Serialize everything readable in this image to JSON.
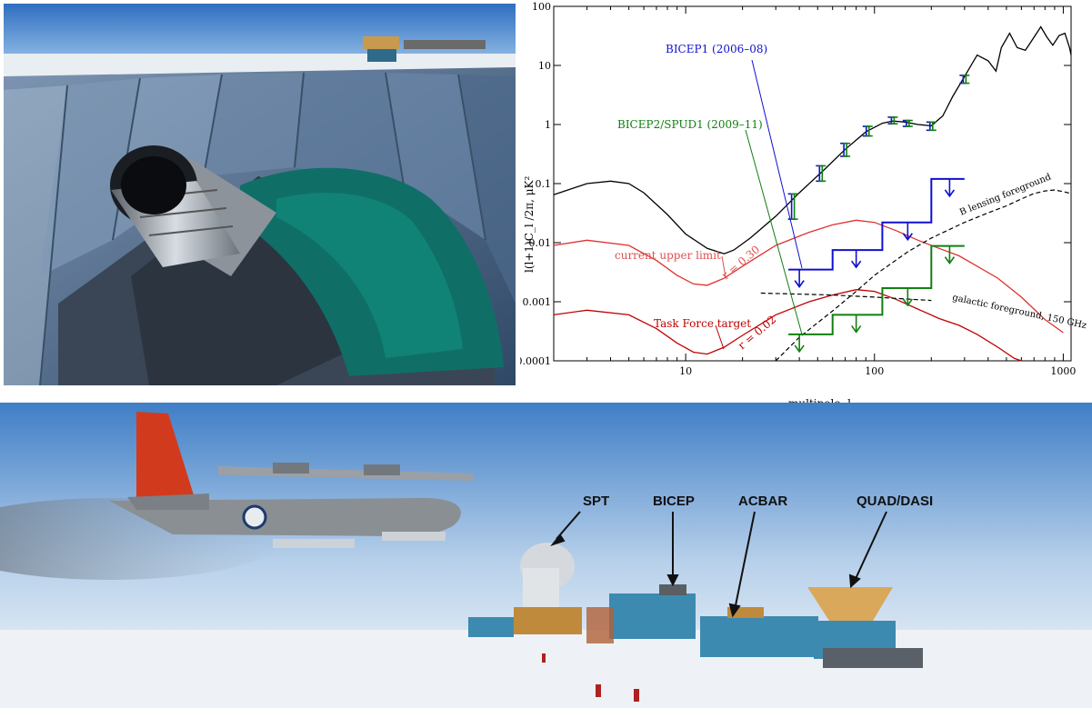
{
  "chart_data": {
    "type": "line",
    "title": "",
    "xlabel": "multipole,  l",
    "ylabel": "l(l+1)C_l /2π,  μK²",
    "x_scale": "log",
    "y_scale": "log",
    "xlim": [
      2,
      1100
    ],
    "ylim": [
      0.0001,
      100
    ],
    "x_ticks": [
      {
        "value": 10,
        "label": "10"
      },
      {
        "value": 100,
        "label": "100"
      },
      {
        "value": 1000,
        "label": "1000"
      }
    ],
    "y_ticks": [
      {
        "value": 0.0001,
        "label": "0.0001"
      },
      {
        "value": 0.001,
        "label": "0.001"
      },
      {
        "value": 0.01,
        "label": "0.01"
      },
      {
        "value": 0.1,
        "label": "0.1"
      },
      {
        "value": 1,
        "label": "1"
      },
      {
        "value": 10,
        "label": "10"
      },
      {
        "value": 100,
        "label": "100"
      }
    ],
    "grid": false,
    "series": [
      {
        "id": "bmode-lensing",
        "color": "#000000",
        "style": "solid",
        "points": [
          [
            2,
            0.065
          ],
          [
            3,
            0.1
          ],
          [
            4,
            0.11
          ],
          [
            5,
            0.1
          ],
          [
            6,
            0.07
          ],
          [
            8,
            0.03
          ],
          [
            10,
            0.014
          ],
          [
            13,
            0.008
          ],
          [
            16,
            0.0065
          ],
          [
            18,
            0.0075
          ],
          [
            22,
            0.012
          ],
          [
            30,
            0.028
          ],
          [
            40,
            0.07
          ],
          [
            55,
            0.18
          ],
          [
            70,
            0.38
          ],
          [
            90,
            0.75
          ],
          [
            110,
            1.05
          ],
          [
            125,
            1.15
          ],
          [
            145,
            1.1
          ],
          [
            170,
            1.0
          ],
          [
            200,
            0.95
          ],
          [
            230,
            1.4
          ],
          [
            260,
            3
          ],
          [
            300,
            6.5
          ],
          [
            350,
            15
          ],
          [
            400,
            12
          ],
          [
            440,
            8
          ],
          [
            470,
            20
          ],
          [
            520,
            35
          ],
          [
            570,
            20
          ],
          [
            630,
            18
          ],
          [
            700,
            30
          ],
          [
            760,
            45
          ],
          [
            820,
            30
          ],
          [
            880,
            22
          ],
          [
            950,
            32
          ],
          [
            1020,
            35
          ],
          [
            1080,
            20
          ],
          [
            1100,
            15
          ]
        ]
      },
      {
        "id": "r-0.30",
        "color": "#e03030",
        "style": "solid",
        "points": [
          [
            2,
            0.009
          ],
          [
            3,
            0.011
          ],
          [
            5,
            0.009
          ],
          [
            7,
            0.005
          ],
          [
            9,
            0.0028
          ],
          [
            11,
            0.002
          ],
          [
            13,
            0.0019
          ],
          [
            16,
            0.0025
          ],
          [
            20,
            0.004
          ],
          [
            30,
            0.009
          ],
          [
            45,
            0.015
          ],
          [
            60,
            0.02
          ],
          [
            80,
            0.024
          ],
          [
            100,
            0.022
          ],
          [
            130,
            0.016
          ],
          [
            170,
            0.011
          ],
          [
            220,
            0.008
          ],
          [
            280,
            0.006
          ],
          [
            350,
            0.004
          ],
          [
            450,
            0.0025
          ],
          [
            600,
            0.0012
          ],
          [
            800,
            0.0005
          ],
          [
            1000,
            0.0003
          ]
        ]
      },
      {
        "id": "r-0.02",
        "color": "#c00000",
        "style": "solid",
        "points": [
          [
            2,
            0.0006
          ],
          [
            3,
            0.00072
          ],
          [
            5,
            0.0006
          ],
          [
            7,
            0.00035
          ],
          [
            9,
            0.0002
          ],
          [
            11,
            0.00014
          ],
          [
            13,
            0.00013
          ],
          [
            16,
            0.00017
          ],
          [
            20,
            0.00027
          ],
          [
            30,
            0.0006
          ],
          [
            45,
            0.001
          ],
          [
            60,
            0.0013
          ],
          [
            80,
            0.0016
          ],
          [
            100,
            0.0015
          ],
          [
            130,
            0.0011
          ],
          [
            170,
            0.00075
          ],
          [
            220,
            0.00052
          ],
          [
            280,
            0.0004
          ],
          [
            350,
            0.00028
          ],
          [
            450,
            0.00017
          ],
          [
            550,
            0.00011
          ],
          [
            600,
            0.0001
          ]
        ]
      },
      {
        "id": "lensing-foreground",
        "color": "#000000",
        "style": "dashed",
        "points": [
          [
            30,
            0.0001
          ],
          [
            40,
            0.00025
          ],
          [
            60,
            0.0007
          ],
          [
            80,
            0.0015
          ],
          [
            100,
            0.0028
          ],
          [
            150,
            0.007
          ],
          [
            200,
            0.012
          ],
          [
            300,
            0.022
          ],
          [
            400,
            0.032
          ],
          [
            500,
            0.042
          ],
          [
            600,
            0.055
          ],
          [
            700,
            0.068
          ],
          [
            800,
            0.075
          ],
          [
            900,
            0.078
          ],
          [
            1000,
            0.073
          ],
          [
            1100,
            0.068
          ]
        ]
      },
      {
        "id": "galactic-foreground",
        "color": "#000000",
        "style": "dashed",
        "points": [
          [
            25,
            0.0014
          ],
          [
            60,
            0.0013
          ],
          [
            100,
            0.0012
          ],
          [
            200,
            0.00105
          ]
        ]
      }
    ],
    "step_limits": [
      {
        "id": "bicep1-limit",
        "color": "#1010d0",
        "edges": [
          35,
          60,
          110,
          200,
          300
        ],
        "values": [
          0.0035,
          0.0075,
          0.022,
          0.12
        ],
        "arrow_x": [
          40,
          80,
          150,
          250
        ]
      },
      {
        "id": "bicep2-limit",
        "color": "#108010",
        "edges": [
          35,
          60,
          110,
          200,
          300
        ],
        "values": [
          0.00028,
          0.0006,
          0.0017,
          0.0088
        ],
        "arrow_x": [
          40,
          80,
          150,
          250
        ]
      }
    ],
    "bandpowers": {
      "x": [
        37,
        52,
        70,
        92,
        125,
        150,
        200,
        300
      ],
      "y": [
        0.045,
        0.15,
        0.38,
        0.78,
        1.18,
        1.05,
        0.95,
        5.8
      ],
      "err_low": [
        0.02,
        0.04,
        0.09,
        0.14,
        0.15,
        0.12,
        0.15,
        0.8
      ],
      "err_high": [
        0.022,
        0.05,
        0.1,
        0.15,
        0.15,
        0.12,
        0.15,
        1.0
      ],
      "colors": [
        "#1010d0",
        "#108010"
      ]
    },
    "annotations": [
      {
        "id": "label-bicep1",
        "text": "BICEP1 (2006–08)",
        "color": "#1010d0"
      },
      {
        "id": "label-bicep2",
        "text": "BICEP2/SPUD1 (2009–11)",
        "color": "#108010"
      },
      {
        "id": "label-upper",
        "text": "current upper limit",
        "color": "#e05050"
      },
      {
        "id": "label-r030",
        "text": "r = 0.30",
        "color": "#e05050"
      },
      {
        "id": "label-target",
        "text": "Task Force target",
        "color": "#c00000"
      },
      {
        "id": "label-r002",
        "text": "r = 0.02",
        "color": "#c00000"
      },
      {
        "id": "label-lensing",
        "text": "B lensing foreground",
        "color": "#000000"
      },
      {
        "id": "label-galactic",
        "text": "galactic foreground, 150 GHz",
        "color": "#000000"
      }
    ]
  },
  "station_photo": {
    "labels": [
      {
        "id": "spt",
        "text": "SPT"
      },
      {
        "id": "bicep",
        "text": "BICEP"
      },
      {
        "id": "acbar",
        "text": "ACBAR"
      },
      {
        "id": "quad",
        "text": "QUAD/DASI"
      }
    ]
  },
  "colors": {
    "sky_top": "#4a82c8",
    "sky_bottom": "#c9dcee",
    "snow": "#eef2f6",
    "ground_shield": "#5a6e86",
    "tarp": "#0f6f66",
    "plane_tail": "#d23a1e",
    "plane_body": "#8a8f94",
    "building_blue": "#3d8ab0",
    "quad_dish": "#d9a85a"
  }
}
